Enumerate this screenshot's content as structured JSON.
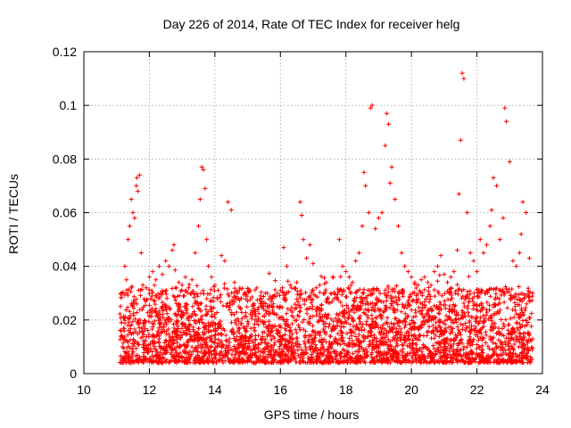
{
  "chart_data": {
    "type": "scatter",
    "title": "Day 226 of 2014, Rate Of TEC Index for receiver helg",
    "xlabel": "GPS time / hours",
    "ylabel": "ROTI / TECUs",
    "xlim": [
      10,
      24
    ],
    "ylim": [
      0,
      0.12
    ],
    "x_ticks": [
      10,
      12,
      14,
      16,
      18,
      20,
      22,
      24
    ],
    "x_tick_labels": [
      "10",
      "12",
      "14",
      "16",
      "18",
      "20",
      "22",
      "24"
    ],
    "y_ticks": [
      0,
      0.02,
      0.04,
      0.06,
      0.08,
      0.1,
      0.12
    ],
    "y_tick_labels": [
      "0",
      "0.02",
      "0.04",
      "0.06",
      "0.08",
      "0.1",
      "0.12"
    ],
    "grid": true,
    "marker": "+",
    "color": "#ff0000",
    "series": [
      {
        "name": "ROTI",
        "x": [
          11.15,
          11.25,
          11.3,
          11.35,
          11.4,
          11.45,
          11.5,
          11.55,
          11.6,
          11.62,
          11.65,
          11.7,
          11.75,
          11.8,
          11.9,
          12.0,
          12.1,
          12.2,
          12.3,
          12.4,
          12.5,
          12.6,
          12.7,
          12.75,
          12.8,
          12.9,
          13.0,
          13.1,
          13.2,
          13.3,
          13.4,
          13.5,
          13.55,
          13.6,
          13.65,
          13.7,
          13.75,
          13.8,
          13.9,
          14.0,
          14.1,
          14.2,
          14.3,
          14.4,
          14.5,
          14.6,
          14.7,
          14.8,
          15.0,
          15.2,
          15.4,
          15.6,
          15.8,
          16.0,
          16.1,
          16.2,
          16.3,
          16.5,
          16.6,
          16.65,
          16.7,
          16.8,
          16.9,
          17.0,
          17.1,
          17.2,
          17.4,
          17.6,
          17.8,
          17.9,
          18.0,
          18.1,
          18.2,
          18.3,
          18.4,
          18.5,
          18.55,
          18.6,
          18.7,
          18.75,
          18.8,
          18.9,
          19.0,
          19.1,
          19.2,
          19.25,
          19.3,
          19.35,
          19.4,
          19.5,
          19.6,
          19.7,
          19.8,
          19.9,
          20.0,
          20.1,
          20.2,
          20.3,
          20.4,
          20.5,
          20.6,
          20.7,
          20.8,
          20.9,
          21.0,
          21.1,
          21.2,
          21.3,
          21.4,
          21.45,
          21.5,
          21.55,
          21.6,
          21.7,
          21.8,
          21.9,
          22.0,
          22.1,
          22.2,
          22.3,
          22.4,
          22.45,
          22.5,
          22.6,
          22.7,
          22.8,
          22.85,
          22.9,
          23.0,
          23.1,
          23.2,
          23.3,
          23.35,
          23.4,
          23.5,
          23.6,
          23.7,
          11.2,
          11.5,
          11.8,
          12.2,
          12.6,
          13.0,
          13.4,
          13.8,
          14.2,
          14.6,
          15.0,
          15.4,
          15.8,
          16.2,
          16.6,
          17.0,
          17.4,
          17.8,
          18.2,
          18.6,
          19.0,
          19.4,
          19.8,
          20.2,
          20.6,
          21.0,
          21.4,
          21.8,
          22.2,
          22.6,
          23.0,
          23.4
        ],
        "y": [
          0.03,
          0.04,
          0.035,
          0.05,
          0.055,
          0.065,
          0.06,
          0.058,
          0.07,
          0.073,
          0.068,
          0.074,
          0.045,
          0.033,
          0.032,
          0.036,
          0.038,
          0.035,
          0.04,
          0.037,
          0.042,
          0.04,
          0.046,
          0.048,
          0.032,
          0.034,
          0.033,
          0.036,
          0.032,
          0.035,
          0.045,
          0.055,
          0.065,
          0.077,
          0.076,
          0.069,
          0.05,
          0.04,
          0.036,
          0.033,
          0.031,
          0.044,
          0.042,
          0.064,
          0.061,
          0.034,
          0.03,
          0.028,
          0.027,
          0.026,
          0.028,
          0.03,
          0.029,
          0.031,
          0.047,
          0.04,
          0.033,
          0.034,
          0.064,
          0.059,
          0.05,
          0.043,
          0.048,
          0.041,
          0.032,
          0.033,
          0.034,
          0.036,
          0.05,
          0.04,
          0.038,
          0.036,
          0.034,
          0.042,
          0.045,
          0.055,
          0.075,
          0.07,
          0.06,
          0.099,
          0.1,
          0.054,
          0.058,
          0.06,
          0.085,
          0.097,
          0.093,
          0.071,
          0.077,
          0.065,
          0.055,
          0.045,
          0.04,
          0.038,
          0.036,
          0.034,
          0.033,
          0.035,
          0.036,
          0.034,
          0.033,
          0.038,
          0.04,
          0.044,
          0.037,
          0.034,
          0.036,
          0.038,
          0.046,
          0.067,
          0.087,
          0.112,
          0.11,
          0.06,
          0.045,
          0.042,
          0.038,
          0.05,
          0.045,
          0.048,
          0.055,
          0.061,
          0.073,
          0.07,
          0.05,
          0.058,
          0.099,
          0.094,
          0.079,
          0.042,
          0.04,
          0.045,
          0.052,
          0.064,
          0.06,
          0.043,
          0.03,
          0.006,
          0.008,
          0.005,
          0.007,
          0.01,
          0.006,
          0.009,
          0.005,
          0.008,
          0.006,
          0.01,
          0.005,
          0.007,
          0.009,
          0.006,
          0.008,
          0.005,
          0.007,
          0.01,
          0.006,
          0.008,
          0.009,
          0.005,
          0.007,
          0.006,
          0.009,
          0.005,
          0.008,
          0.006,
          0.007,
          0.009,
          0.006
        ]
      }
    ]
  }
}
